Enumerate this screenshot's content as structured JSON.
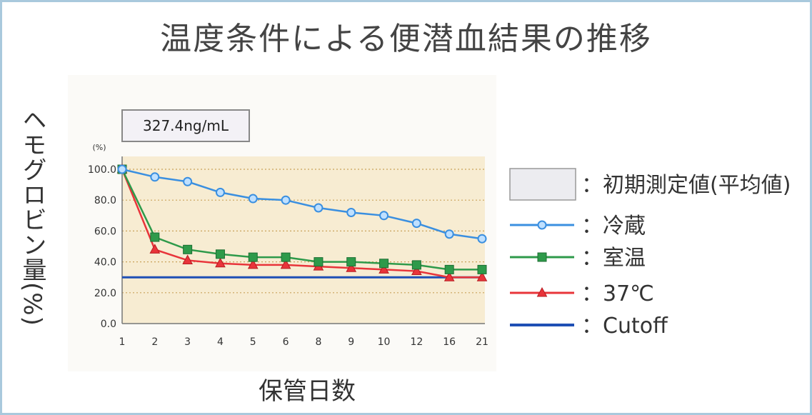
{
  "title": "温度条件による便潜血結果の推移",
  "info_box": "327.4ng/mL",
  "colors": {
    "plot_bg": "#f7ecd2",
    "grid": "#c9a25a",
    "reizou": "#3a8fe0",
    "shitsuon": "#2e9a4a",
    "c37": "#e8343a",
    "cutoff": "#1f4fb5",
    "initial_fill": "#ececf0"
  },
  "chart_data": {
    "type": "line",
    "title": "温度条件による便潜血結果の推移",
    "xlabel": "保管日数",
    "ylabel": "ヘモグロビン量(%)",
    "yunit": "(%)",
    "categories": [
      "1",
      "2",
      "3",
      "4",
      "5",
      "6",
      "8",
      "9",
      "10",
      "12",
      "16",
      "21"
    ],
    "ylim": [
      0,
      100
    ],
    "yticks": [
      "100.0",
      "80.0",
      "60.0",
      "40.0",
      "20.0",
      "0.0"
    ],
    "grid": true,
    "legend_position": "right",
    "series": [
      {
        "name": "冷蔵",
        "marker": "circle",
        "values": [
          100,
          95,
          92,
          85,
          81,
          80,
          75,
          72,
          70,
          65,
          58,
          55
        ]
      },
      {
        "name": "室温",
        "marker": "square",
        "values": [
          100,
          56,
          48,
          45,
          43,
          43,
          40,
          40,
          39,
          38,
          35,
          35
        ]
      },
      {
        "name": "37℃",
        "marker": "triangle",
        "values": [
          100,
          48,
          41,
          39,
          38,
          38,
          37,
          36,
          35,
          34,
          30,
          30
        ]
      },
      {
        "name": "Cutoff",
        "marker": "none",
        "values": [
          30,
          30,
          30,
          30,
          30,
          30,
          30,
          30,
          30,
          30,
          30,
          30
        ]
      }
    ],
    "legend": [
      {
        "key": "initial",
        "label": "：初期測定値(平均値)"
      },
      {
        "key": "reizou",
        "label": "：冷蔵"
      },
      {
        "key": "shitsuon",
        "label": "：室温"
      },
      {
        "key": "c37",
        "label": "：37℃"
      },
      {
        "key": "cutoff",
        "label": "：Cutoff"
      }
    ]
  }
}
